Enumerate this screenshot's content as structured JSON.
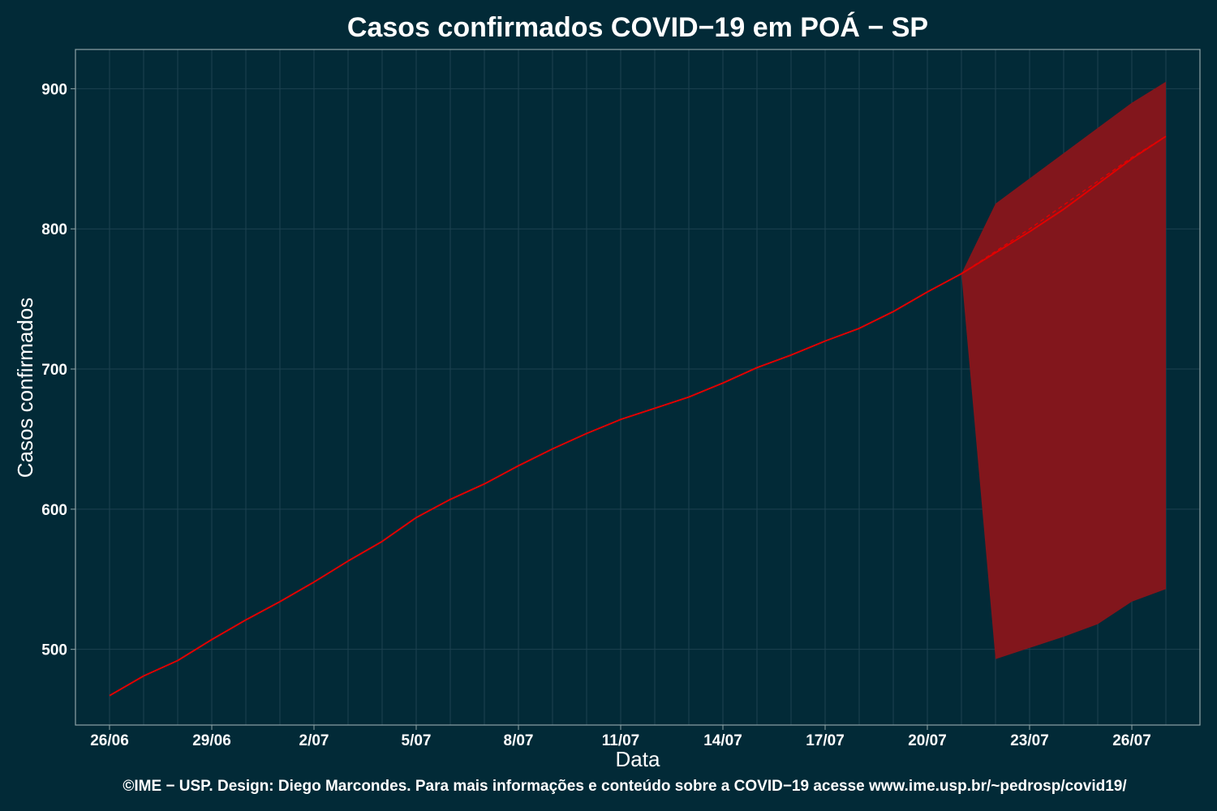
{
  "chart_data": {
    "type": "line",
    "title": "Casos confirmados COVID−19 em POÁ − SP",
    "xlabel": "Data",
    "ylabel": "Casos confirmados",
    "caption": "©IME − USP. Design: Diego Marcondes. Para mais informações e conteúdo sobre a COVID−19 acesse www.ime.usp.br/~pedrosp/covid19/",
    "x_tick_labels": [
      "26/06",
      "29/06",
      "2/07",
      "5/07",
      "8/07",
      "11/07",
      "14/07",
      "17/07",
      "20/07",
      "23/07",
      "26/07"
    ],
    "x_tick_dates": [
      "2020-06-26",
      "2020-06-29",
      "2020-07-02",
      "2020-07-05",
      "2020-07-08",
      "2020-07-11",
      "2020-07-14",
      "2020-07-17",
      "2020-07-20",
      "2020-07-23",
      "2020-07-26"
    ],
    "y_ticks": [
      500,
      600,
      700,
      800,
      900
    ],
    "xlim": [
      "2020-06-25",
      "2020-07-28"
    ],
    "ylim": [
      446,
      928
    ],
    "grid": true,
    "colors": {
      "background": "#022a37",
      "panel_border": "#8fa3a6",
      "grid": "#1d4250",
      "line": "#e00000",
      "band": "#82161c"
    },
    "series": [
      {
        "role": "observed",
        "x": [
          "2020-06-26",
          "2020-06-27",
          "2020-06-28",
          "2020-06-29",
          "2020-06-30",
          "2020-07-01",
          "2020-07-02",
          "2020-07-03",
          "2020-07-04",
          "2020-07-05",
          "2020-07-06",
          "2020-07-07",
          "2020-07-08",
          "2020-07-09",
          "2020-07-10",
          "2020-07-11",
          "2020-07-12",
          "2020-07-13",
          "2020-07-14",
          "2020-07-15",
          "2020-07-16",
          "2020-07-17",
          "2020-07-18",
          "2020-07-19",
          "2020-07-20",
          "2020-07-21"
        ],
        "y": [
          467,
          481,
          492,
          507,
          521,
          534,
          548,
          563,
          577,
          594,
          607,
          618,
          631,
          643,
          654,
          664,
          672,
          680,
          690,
          701,
          710,
          720,
          729,
          741,
          755,
          768
        ]
      },
      {
        "role": "forecast",
        "x": [
          "2020-07-21",
          "2020-07-22",
          "2020-07-23",
          "2020-07-24",
          "2020-07-25",
          "2020-07-26",
          "2020-07-27"
        ],
        "y": [
          768,
          783,
          798,
          814,
          832,
          850,
          866
        ]
      },
      {
        "role": "forecast-dashed",
        "x": [
          "2020-07-21",
          "2020-07-22",
          "2020-07-23",
          "2020-07-24",
          "2020-07-25",
          "2020-07-26",
          "2020-07-27"
        ],
        "y": [
          768,
          784,
          800,
          817,
          834,
          851,
          866
        ]
      }
    ],
    "band": {
      "x": [
        "2020-07-21",
        "2020-07-22",
        "2020-07-23",
        "2020-07-24",
        "2020-07-25",
        "2020-07-26",
        "2020-07-27"
      ],
      "lower": [
        768,
        493,
        501,
        509,
        518,
        534,
        543
      ],
      "upper": [
        768,
        818,
        836,
        854,
        872,
        890,
        905
      ]
    }
  }
}
